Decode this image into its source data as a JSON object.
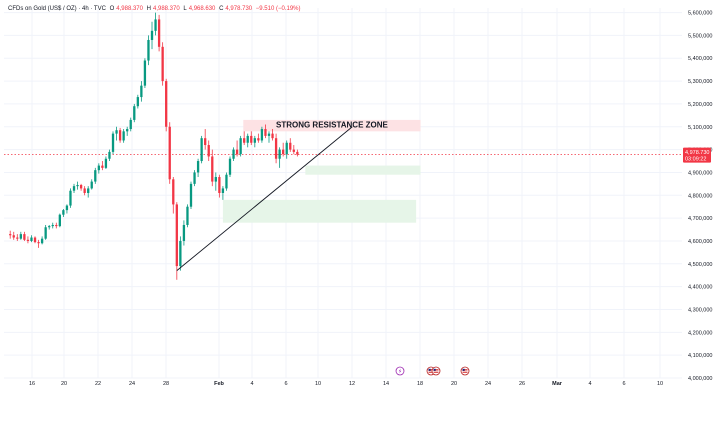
{
  "header": {
    "symbol": "CFDs on Gold (US$ / OZ) · 4h · TVC",
    "o_label": "O",
    "o_val": "4,988.370",
    "h_label": "H",
    "h_val": "4,988.370",
    "l_label": "L",
    "l_val": "4,968.630",
    "c_label": "C",
    "c_val": "4,978.730",
    "change": "−9.510 (−0.19%)"
  },
  "colors": {
    "up": "#089981",
    "down": "#f23645",
    "grid": "#f0f3fa",
    "resistance_zone": "#fde2e4",
    "support_zone": "#e6f5e8",
    "price_badge": "#f23645"
  },
  "annotation": {
    "resistance_label": "STRONG RESISTANCE ZONE"
  },
  "price_badge": {
    "price": "4,978.730",
    "countdown": "03:09:22"
  },
  "icons": [
    "lightning-event-icon",
    "us-flag-event-icon",
    "us-flag-event-icon-2",
    "us-flag-event-icon-3"
  ],
  "chart_data": {
    "type": "candlestick",
    "y_axis_ticks": [
      "5,600,000",
      "5,500,000",
      "5,400,000",
      "5,300,000",
      "5,200,000",
      "5,100,000",
      "5,000,000",
      "4,900,000",
      "4,800,000",
      "4,700,000",
      "4,600,000",
      "4,500,000",
      "4,400,000",
      "4,300,000",
      "4,200,000",
      "4,100,000",
      "4,000,000"
    ],
    "x_axis_ticks": [
      "16",
      "20",
      "22",
      "24",
      "28",
      "Feb",
      "4",
      "6",
      "10",
      "12",
      "14",
      "18",
      "20",
      "24",
      "26",
      "Mar",
      "4",
      "6",
      "10"
    ],
    "ylim": [
      4000,
      5620
    ],
    "zones": [
      {
        "name": "resistance",
        "y_from": 5080,
        "y_to": 5130,
        "x_from": 26.5,
        "x_to": 46.5
      },
      {
        "name": "support-upper",
        "y_from": 4890,
        "y_to": 4930,
        "x_from": 33.5,
        "x_to": 46.5
      },
      {
        "name": "support-lower",
        "y_from": 4680,
        "y_to": 4780,
        "x_from": 24.2,
        "x_to": 46
      }
    ],
    "trendline": {
      "x1": 19,
      "y1": 4470,
      "x2": 38.8,
      "y2": 5100
    },
    "candles": [
      {
        "x": 0.2,
        "o": 4630,
        "h": 4645,
        "l": 4610,
        "c": 4625
      },
      {
        "x": 0.6,
        "o": 4625,
        "h": 4640,
        "l": 4605,
        "c": 4615
      },
      {
        "x": 1.0,
        "o": 4615,
        "h": 4630,
        "l": 4600,
        "c": 4610
      },
      {
        "x": 1.4,
        "o": 4610,
        "h": 4640,
        "l": 4605,
        "c": 4630
      },
      {
        "x": 1.8,
        "o": 4630,
        "h": 4640,
        "l": 4600,
        "c": 4605
      },
      {
        "x": 2.2,
        "o": 4605,
        "h": 4620,
        "l": 4590,
        "c": 4600
      },
      {
        "x": 2.6,
        "o": 4600,
        "h": 4625,
        "l": 4595,
        "c": 4615
      },
      {
        "x": 3.0,
        "o": 4615,
        "h": 4620,
        "l": 4590,
        "c": 4595
      },
      {
        "x": 3.4,
        "o": 4595,
        "h": 4605,
        "l": 4570,
        "c": 4590
      },
      {
        "x": 3.8,
        "o": 4590,
        "h": 4620,
        "l": 4585,
        "c": 4610
      },
      {
        "x": 4.2,
        "o": 4610,
        "h": 4670,
        "l": 4605,
        "c": 4660
      },
      {
        "x": 4.6,
        "o": 4660,
        "h": 4670,
        "l": 4650,
        "c": 4665
      },
      {
        "x": 5.0,
        "o": 4665,
        "h": 4680,
        "l": 4655,
        "c": 4670
      },
      {
        "x": 5.4,
        "o": 4670,
        "h": 4680,
        "l": 4655,
        "c": 4665
      },
      {
        "x": 5.8,
        "o": 4665,
        "h": 4720,
        "l": 4660,
        "c": 4715
      },
      {
        "x": 6.2,
        "o": 4715,
        "h": 4740,
        "l": 4705,
        "c": 4735
      },
      {
        "x": 6.6,
        "o": 4735,
        "h": 4760,
        "l": 4720,
        "c": 4755
      },
      {
        "x": 7.0,
        "o": 4755,
        "h": 4830,
        "l": 4745,
        "c": 4820
      },
      {
        "x": 7.4,
        "o": 4820,
        "h": 4850,
        "l": 4810,
        "c": 4840
      },
      {
        "x": 7.8,
        "o": 4840,
        "h": 4860,
        "l": 4825,
        "c": 4845
      },
      {
        "x": 8.2,
        "o": 4845,
        "h": 4850,
        "l": 4820,
        "c": 4830
      },
      {
        "x": 8.6,
        "o": 4830,
        "h": 4840,
        "l": 4800,
        "c": 4810
      },
      {
        "x": 9.0,
        "o": 4810,
        "h": 4840,
        "l": 4790,
        "c": 4830
      },
      {
        "x": 9.4,
        "o": 4830,
        "h": 4870,
        "l": 4825,
        "c": 4860
      },
      {
        "x": 9.8,
        "o": 4860,
        "h": 4920,
        "l": 4850,
        "c": 4910
      },
      {
        "x": 10.2,
        "o": 4910,
        "h": 4940,
        "l": 4895,
        "c": 4930
      },
      {
        "x": 10.6,
        "o": 4930,
        "h": 4950,
        "l": 4910,
        "c": 4920
      },
      {
        "x": 11.0,
        "o": 4920,
        "h": 4970,
        "l": 4915,
        "c": 4960
      },
      {
        "x": 11.4,
        "o": 4960,
        "h": 5000,
        "l": 4950,
        "c": 4990
      },
      {
        "x": 11.8,
        "o": 4990,
        "h": 5080,
        "l": 4980,
        "c": 5070
      },
      {
        "x": 12.2,
        "o": 5070,
        "h": 5100,
        "l": 5040,
        "c": 5085
      },
      {
        "x": 12.6,
        "o": 5085,
        "h": 5095,
        "l": 5030,
        "c": 5040
      },
      {
        "x": 13.0,
        "o": 5040,
        "h": 5090,
        "l": 5030,
        "c": 5080
      },
      {
        "x": 13.4,
        "o": 5080,
        "h": 5100,
        "l": 5060,
        "c": 5090
      },
      {
        "x": 13.8,
        "o": 5090,
        "h": 5140,
        "l": 5080,
        "c": 5130
      },
      {
        "x": 14.2,
        "o": 5130,
        "h": 5200,
        "l": 5120,
        "c": 5190
      },
      {
        "x": 14.6,
        "o": 5190,
        "h": 5240,
        "l": 5180,
        "c": 5230
      },
      {
        "x": 15.0,
        "o": 5230,
        "h": 5300,
        "l": 5210,
        "c": 5280
      },
      {
        "x": 15.4,
        "o": 5280,
        "h": 5400,
        "l": 5270,
        "c": 5390
      },
      {
        "x": 15.8,
        "o": 5390,
        "h": 5500,
        "l": 5370,
        "c": 5480
      },
      {
        "x": 16.2,
        "o": 5480,
        "h": 5560,
        "l": 5440,
        "c": 5520
      },
      {
        "x": 16.6,
        "o": 5520,
        "h": 5600,
        "l": 5500,
        "c": 5570
      },
      {
        "x": 17.0,
        "o": 5570,
        "h": 5590,
        "l": 5430,
        "c": 5450
      },
      {
        "x": 17.4,
        "o": 5450,
        "h": 5470,
        "l": 5280,
        "c": 5300
      },
      {
        "x": 17.8,
        "o": 5300,
        "h": 5310,
        "l": 5080,
        "c": 5100
      },
      {
        "x": 18.2,
        "o": 5100,
        "h": 5120,
        "l": 4850,
        "c": 4870
      },
      {
        "x": 18.6,
        "o": 4870,
        "h": 4880,
        "l": 4720,
        "c": 4760
      },
      {
        "x": 19.0,
        "o": 4760,
        "h": 4770,
        "l": 4430,
        "c": 4490
      },
      {
        "x": 19.4,
        "o": 4490,
        "h": 4620,
        "l": 4470,
        "c": 4600
      },
      {
        "x": 19.8,
        "o": 4600,
        "h": 4690,
        "l": 4580,
        "c": 4670
      },
      {
        "x": 20.2,
        "o": 4670,
        "h": 4760,
        "l": 4660,
        "c": 4750
      },
      {
        "x": 20.6,
        "o": 4750,
        "h": 4860,
        "l": 4740,
        "c": 4850
      },
      {
        "x": 21.0,
        "o": 4850,
        "h": 4910,
        "l": 4840,
        "c": 4900
      },
      {
        "x": 21.4,
        "o": 4900,
        "h": 4960,
        "l": 4880,
        "c": 4950
      },
      {
        "x": 21.8,
        "o": 4950,
        "h": 5060,
        "l": 4940,
        "c": 5050
      },
      {
        "x": 22.2,
        "o": 5050,
        "h": 5090,
        "l": 5000,
        "c": 5020
      },
      {
        "x": 22.6,
        "o": 5020,
        "h": 5040,
        "l": 4950,
        "c": 4970
      },
      {
        "x": 23.0,
        "o": 4970,
        "h": 5000,
        "l": 4840,
        "c": 4860
      },
      {
        "x": 23.4,
        "o": 4860,
        "h": 4900,
        "l": 4820,
        "c": 4880
      },
      {
        "x": 23.8,
        "o": 4880,
        "h": 4890,
        "l": 4790,
        "c": 4810
      },
      {
        "x": 24.2,
        "o": 4810,
        "h": 4840,
        "l": 4780,
        "c": 4830
      },
      {
        "x": 24.6,
        "o": 4830,
        "h": 4900,
        "l": 4820,
        "c": 4890
      },
      {
        "x": 25.0,
        "o": 4890,
        "h": 4970,
        "l": 4880,
        "c": 4960
      },
      {
        "x": 25.4,
        "o": 4960,
        "h": 5010,
        "l": 4950,
        "c": 5000
      },
      {
        "x": 25.8,
        "o": 5000,
        "h": 5040,
        "l": 4970,
        "c": 4980
      },
      {
        "x": 26.2,
        "o": 4980,
        "h": 5060,
        "l": 4970,
        "c": 5050
      },
      {
        "x": 26.6,
        "o": 5050,
        "h": 5080,
        "l": 5020,
        "c": 5030
      },
      {
        "x": 27.0,
        "o": 5030,
        "h": 5070,
        "l": 5010,
        "c": 5060
      },
      {
        "x": 27.4,
        "o": 5060,
        "h": 5080,
        "l": 5020,
        "c": 5030
      },
      {
        "x": 27.8,
        "o": 5030,
        "h": 5060,
        "l": 5010,
        "c": 5050
      },
      {
        "x": 28.2,
        "o": 5050,
        "h": 5070,
        "l": 5030,
        "c": 5040
      },
      {
        "x": 28.6,
        "o": 5040,
        "h": 5100,
        "l": 5030,
        "c": 5090
      },
      {
        "x": 29.0,
        "o": 5090,
        "h": 5110,
        "l": 5050,
        "c": 5060
      },
      {
        "x": 29.4,
        "o": 5060,
        "h": 5080,
        "l": 5030,
        "c": 5070
      },
      {
        "x": 29.8,
        "o": 5070,
        "h": 5090,
        "l": 5040,
        "c": 5050
      },
      {
        "x": 30.2,
        "o": 5050,
        "h": 5070,
        "l": 4940,
        "c": 4960
      },
      {
        "x": 30.6,
        "o": 4960,
        "h": 5010,
        "l": 4920,
        "c": 5000
      },
      {
        "x": 31.0,
        "o": 5000,
        "h": 5030,
        "l": 4970,
        "c": 4980
      },
      {
        "x": 31.4,
        "o": 4980,
        "h": 5040,
        "l": 4960,
        "c": 5030
      },
      {
        "x": 31.8,
        "o": 5030,
        "h": 5050,
        "l": 4990,
        "c": 5000
      },
      {
        "x": 32.2,
        "o": 5000,
        "h": 5020,
        "l": 4980,
        "c": 4990
      },
      {
        "x": 32.6,
        "o": 4990,
        "h": 5000,
        "l": 4970,
        "c": 4978
      }
    ]
  }
}
